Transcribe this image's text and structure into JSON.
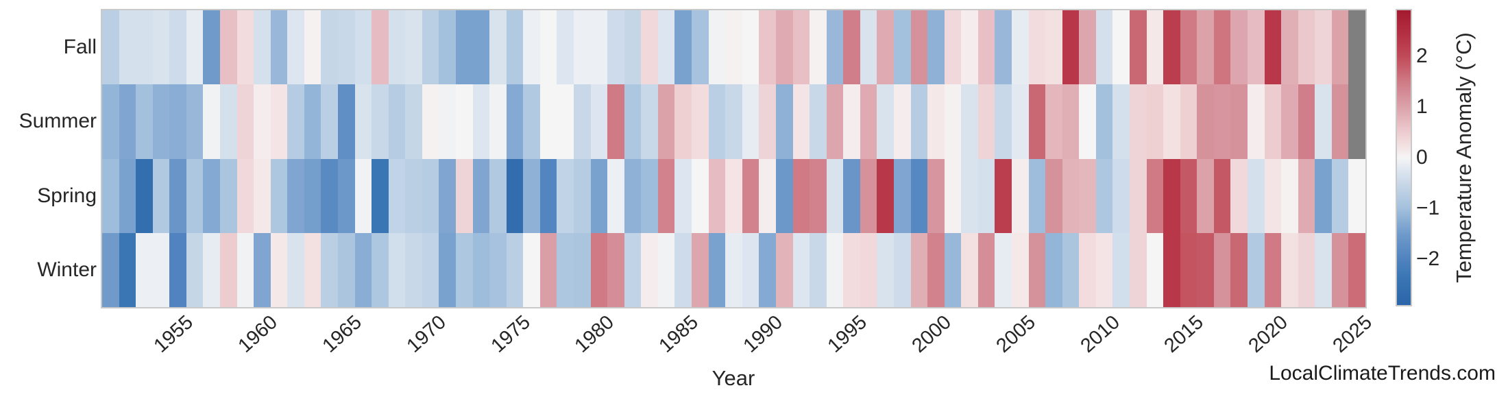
{
  "figure": {
    "watermark": "LocalClimateTrends.com"
  },
  "chart_data": {
    "type": "heatmap",
    "title": "",
    "xlabel": "Year",
    "ylabel": "",
    "x": [
      1951,
      1952,
      1953,
      1954,
      1955,
      1956,
      1957,
      1958,
      1959,
      1960,
      1961,
      1962,
      1963,
      1964,
      1965,
      1966,
      1967,
      1968,
      1969,
      1970,
      1971,
      1972,
      1973,
      1974,
      1975,
      1976,
      1977,
      1978,
      1979,
      1980,
      1981,
      1982,
      1983,
      1984,
      1985,
      1986,
      1987,
      1988,
      1989,
      1990,
      1991,
      1992,
      1993,
      1994,
      1995,
      1996,
      1997,
      1998,
      1999,
      2000,
      2001,
      2002,
      2003,
      2004,
      2005,
      2006,
      2007,
      2008,
      2009,
      2010,
      2011,
      2012,
      2013,
      2014,
      2015,
      2016,
      2017,
      2018,
      2019,
      2020,
      2021,
      2022,
      2023,
      2024,
      2025
    ],
    "x_tick_labels": [
      "1955",
      "1960",
      "1965",
      "1970",
      "1975",
      "1980",
      "1985",
      "1990",
      "1995",
      "2000",
      "2005",
      "2010",
      "2015",
      "2020",
      "2025"
    ],
    "x_tick_years": [
      1955,
      1960,
      1965,
      1970,
      1975,
      1980,
      1985,
      1990,
      1995,
      2000,
      2005,
      2010,
      2015,
      2020,
      2025
    ],
    "rows": [
      "Fall",
      "Summer",
      "Spring",
      "Winter"
    ],
    "series": [
      {
        "name": "Fall",
        "values": [
          -0.7,
          -0.35,
          -0.35,
          -0.3,
          -0.45,
          -0.15,
          -1.5,
          0.65,
          0.3,
          -0.35,
          -1.1,
          -0.25,
          0.05,
          -0.55,
          -0.5,
          -0.4,
          0.7,
          -0.35,
          -0.3,
          -0.7,
          -1.0,
          -1.4,
          -1.4,
          -0.3,
          -0.8,
          -0.1,
          0.0,
          -0.25,
          -0.1,
          -0.1,
          -0.45,
          -0.55,
          0.35,
          -0.25,
          -1.4,
          -0.95,
          -0.05,
          0.05,
          0.0,
          0.6,
          0.9,
          0.65,
          0.05,
          -1.1,
          1.45,
          -0.3,
          0.9,
          -1.0,
          1.2,
          -1.2,
          0.35,
          0.1,
          0.65,
          -1.1,
          -0.15,
          0.3,
          0.25,
          2.3,
          0.95,
          -0.35,
          0.0,
          1.7,
          0.15,
          2.2,
          1.5,
          1.0,
          1.55,
          0.95,
          0.7,
          2.3,
          0.85,
          0.55,
          0.4,
          1.0,
          null
        ]
      },
      {
        "name": "Summer",
        "values": [
          -1.15,
          -1.35,
          -1.0,
          -1.2,
          -1.25,
          -1.1,
          -0.05,
          -0.35,
          0.4,
          0.1,
          0.2,
          -0.75,
          -1.15,
          -0.7,
          -1.75,
          -0.3,
          -0.5,
          -0.75,
          -0.55,
          0.05,
          -0.05,
          0.0,
          -0.25,
          -0.05,
          -1.3,
          -0.8,
          0.0,
          0.0,
          -0.5,
          -0.25,
          1.5,
          -0.85,
          -0.5,
          1.0,
          0.45,
          0.3,
          -0.7,
          -0.5,
          -0.15,
          0.4,
          -1.2,
          0.2,
          -0.5,
          0.95,
          0.1,
          0.9,
          -0.3,
          0.1,
          -0.75,
          0.15,
          0.05,
          -0.3,
          0.4,
          -0.5,
          -0.2,
          1.7,
          0.75,
          0.85,
          0.0,
          -1.0,
          -0.35,
          0.4,
          0.45,
          0.25,
          0.45,
          1.2,
          1.15,
          1.2,
          0.1,
          0.5,
          0.9,
          1.45,
          -0.3,
          1.2,
          null
        ]
      },
      {
        "name": "Spring",
        "values": [
          -1.05,
          -1.4,
          -2.6,
          -0.8,
          -1.6,
          -0.85,
          -1.3,
          -0.9,
          0.35,
          0.15,
          -0.85,
          -1.35,
          -1.45,
          -1.85,
          -1.55,
          -0.05,
          -2.35,
          -0.6,
          -0.7,
          -0.75,
          -1.35,
          0.4,
          -1.35,
          -0.8,
          -2.65,
          -1.2,
          -1.95,
          -0.6,
          -0.75,
          -1.4,
          -0.1,
          -1.2,
          -1.05,
          1.4,
          -0.25,
          0.0,
          0.7,
          0.2,
          1.4,
          0.1,
          -1.55,
          1.5,
          1.4,
          -0.3,
          -1.6,
          1.2,
          2.3,
          -1.35,
          -1.9,
          1.15,
          0.05,
          -0.3,
          -0.35,
          2.2,
          0.1,
          -1.05,
          1.2,
          0.8,
          0.75,
          -0.85,
          -0.45,
          0.4,
          1.5,
          2.3,
          1.85,
          1.0,
          1.85,
          0.35,
          -0.35,
          0.2,
          0.05,
          0.9,
          -1.4,
          -0.75,
          0.0
        ]
      },
      {
        "name": "Winter",
        "values": [
          -1.5,
          -2.35,
          -0.1,
          -0.1,
          -2.0,
          -0.55,
          -0.15,
          0.5,
          -0.05,
          -1.35,
          0.15,
          -0.3,
          0.25,
          -0.7,
          -0.9,
          -1.25,
          -0.85,
          -0.4,
          -0.5,
          -0.6,
          -1.4,
          -0.85,
          -1.05,
          -0.95,
          -0.7,
          0.0,
          1.05,
          -0.85,
          -0.9,
          1.5,
          1.25,
          -0.6,
          0.1,
          -0.05,
          -0.45,
          0.95,
          -1.4,
          -0.15,
          -0.25,
          -1.3,
          0.8,
          -0.25,
          -0.5,
          -0.05,
          0.3,
          0.35,
          -0.3,
          -0.45,
          0.85,
          1.4,
          -1.1,
          0.25,
          1.25,
          -0.15,
          0.15,
          1.2,
          -1.15,
          -0.9,
          0.3,
          0.2,
          -0.4,
          0.4,
          0.0,
          2.3,
          1.9,
          1.85,
          1.2,
          1.7,
          -0.8,
          1.5,
          0.25,
          0.4,
          -0.3,
          1.2,
          1.65
        ]
      }
    ],
    "colorbar": {
      "label": "Temperature Anomaly (°C)",
      "vmin": -2.9,
      "vmax": 2.9,
      "ticks": [
        {
          "label": "2",
          "value": 2
        },
        {
          "label": "1",
          "value": 1
        },
        {
          "label": "0",
          "value": 0
        },
        {
          "label": "−1",
          "value": -1
        },
        {
          "label": "−2",
          "value": -2
        }
      ]
    },
    "colorscale": [
      {
        "value": -2.9,
        "color": "#2a65a9"
      },
      {
        "value": -2.35,
        "color": "#3b76b4"
      },
      {
        "value": -2.0,
        "color": "#5083bf"
      },
      {
        "value": -1.5,
        "color": "#6f9aca"
      },
      {
        "value": -1.0,
        "color": "#a3c0dd"
      },
      {
        "value": -0.5,
        "color": "#c9d8e8"
      },
      {
        "value": -0.25,
        "color": "#dde6f0"
      },
      {
        "value": 0.0,
        "color": "#f6f5f5"
      },
      {
        "value": 0.25,
        "color": "#f3e0e1"
      },
      {
        "value": 0.5,
        "color": "#edccd0"
      },
      {
        "value": 1.0,
        "color": "#dba2aa"
      },
      {
        "value": 1.5,
        "color": "#cf7a85"
      },
      {
        "value": 2.0,
        "color": "#c04a57"
      },
      {
        "value": 2.5,
        "color": "#b22c3f"
      },
      {
        "value": 2.9,
        "color": "#a31a2e"
      }
    ],
    "missing_value_color": "#7f7f7f",
    "axis_text_color": "#262626",
    "spine_color": "#c9c9c9",
    "legend_position": "right-colorbar",
    "grid": false
  }
}
